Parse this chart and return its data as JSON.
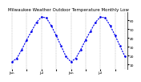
{
  "title": "Milwaukee Weather Outdoor Temperature Monthly Low",
  "values": [
    13,
    17,
    27,
    38,
    48,
    58,
    64,
    63,
    54,
    43,
    31,
    19,
    13,
    17,
    27,
    38,
    48,
    58,
    64,
    63,
    54,
    43,
    31,
    19
  ],
  "x_labels": [
    "J",
    "a",
    "n",
    " ",
    "J",
    "u",
    "l",
    " ",
    "J",
    "a",
    "n",
    " ",
    "J",
    "a",
    "n",
    " ",
    "J",
    "u",
    "l",
    " ",
    "J",
    "a",
    "n",
    " ",
    "J",
    "u",
    "l"
  ],
  "xtick_positions": [
    0,
    3,
    6,
    9,
    12,
    15,
    18,
    21
  ],
  "xtick_labels": [
    "Jan",
    "",
    "Jul",
    "",
    "Jan",
    "",
    "Jul",
    ""
  ],
  "line_color": "#0000ee",
  "bg_color": "#ffffff",
  "grid_color": "#999999",
  "ylim": [
    5,
    70
  ],
  "yticks": [
    10,
    20,
    30,
    40,
    50,
    60
  ],
  "ytick_labels": [
    "10",
    "20",
    "30",
    "40",
    "50",
    "60"
  ],
  "title_fontsize": 4.0,
  "tick_fontsize": 3.2,
  "line_width": 0.8,
  "marker_size": 1.8,
  "grid_line_positions": [
    0,
    3,
    6,
    9,
    12,
    15,
    18,
    21,
    23
  ]
}
